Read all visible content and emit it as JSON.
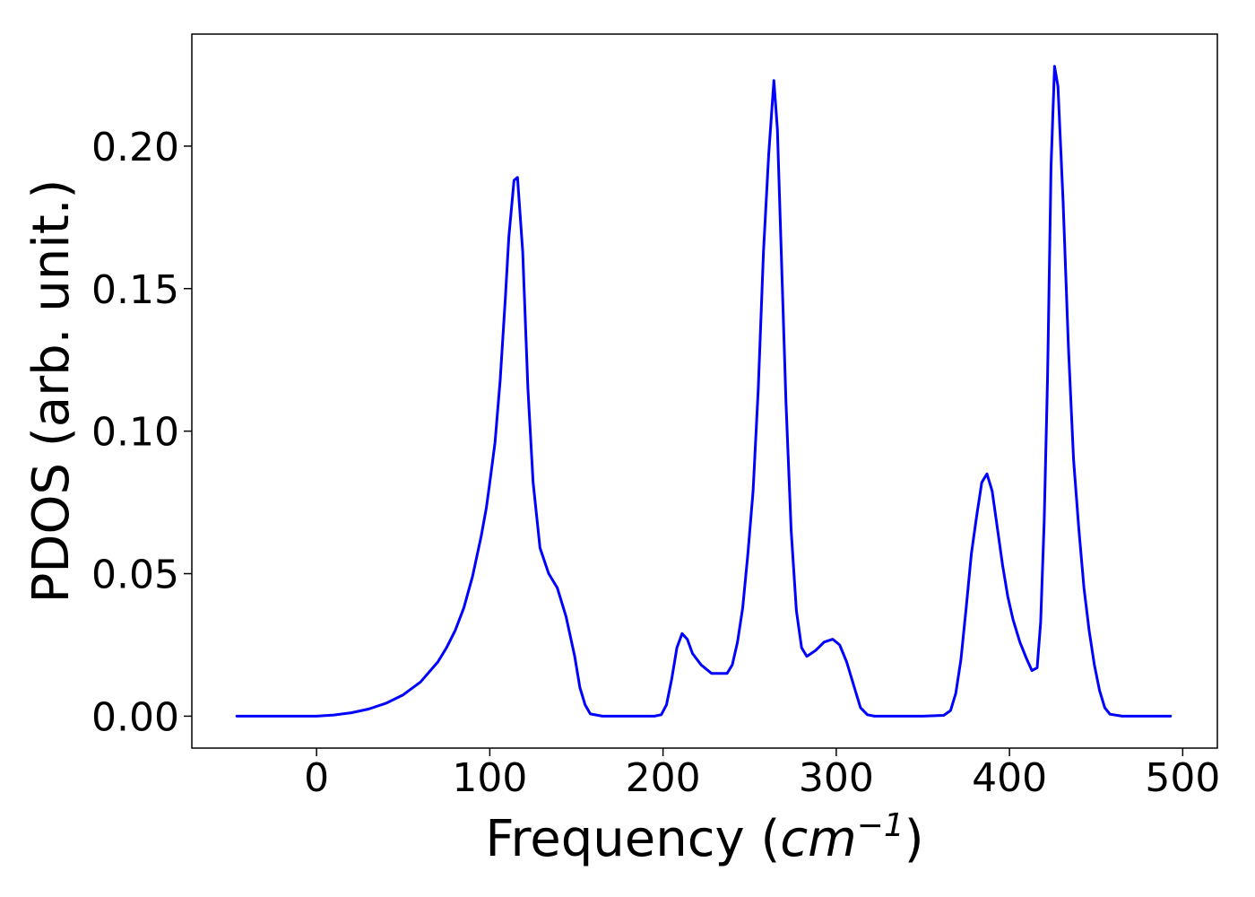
{
  "chart_data": {
    "type": "line",
    "title": "",
    "xlabel": {
      "prefix": "Frequency (",
      "unit_base": "cm",
      "unit_exponent": "−1",
      "suffix": ")"
    },
    "ylabel": "PDOS (arb. unit.)",
    "xlim": [
      -72,
      520
    ],
    "ylim": [
      -0.0112,
      0.2393
    ],
    "x_ticks": [
      0,
      100,
      200,
      300,
      400,
      500
    ],
    "x_tick_labels": [
      "0",
      "100",
      "200",
      "300",
      "400",
      "500"
    ],
    "y_ticks": [
      0.0,
      0.05,
      0.1,
      0.15,
      0.2
    ],
    "y_tick_labels": [
      "0.00",
      "0.05",
      "0.10",
      "0.15",
      "0.20"
    ],
    "grid": false,
    "legend": "none",
    "series": [
      {
        "color": "#0000ff",
        "x": [
          -46,
          -20,
          0,
          10,
          20,
          30,
          40,
          50,
          60,
          70,
          75,
          80,
          85,
          90,
          95,
          98,
          100,
          103,
          106,
          109,
          111,
          114,
          116,
          119,
          122,
          125,
          129,
          134,
          139,
          144,
          149,
          152,
          155,
          158,
          165,
          180,
          195,
          199,
          202,
          205,
          208,
          211,
          214,
          217,
          222,
          228,
          234,
          237,
          240,
          243,
          246,
          249,
          252,
          255,
          258,
          261,
          264,
          266,
          268,
          271,
          274,
          277,
          280,
          283,
          288,
          293,
          298,
          302,
          306,
          310,
          314,
          318,
          322,
          330,
          350,
          362,
          366,
          369,
          372,
          375,
          378,
          381,
          384,
          387,
          390,
          393,
          396,
          399,
          402,
          406,
          410,
          413,
          416,
          418,
          420,
          422,
          424,
          426,
          428,
          431,
          434,
          437,
          440,
          443,
          446,
          449,
          452,
          455,
          458,
          465,
          480,
          493
        ],
        "y": [
          0.0,
          0.0,
          0.0,
          0.0004,
          0.0012,
          0.0025,
          0.0045,
          0.0075,
          0.012,
          0.019,
          0.024,
          0.03,
          0.038,
          0.049,
          0.063,
          0.073,
          0.082,
          0.096,
          0.118,
          0.147,
          0.168,
          0.188,
          0.189,
          0.163,
          0.115,
          0.082,
          0.059,
          0.05,
          0.045,
          0.035,
          0.021,
          0.01,
          0.004,
          0.0008,
          0.0,
          0.0,
          0.0,
          0.0005,
          0.004,
          0.013,
          0.024,
          0.029,
          0.027,
          0.022,
          0.018,
          0.015,
          0.015,
          0.015,
          0.018,
          0.026,
          0.038,
          0.057,
          0.079,
          0.115,
          0.163,
          0.197,
          0.223,
          0.206,
          0.168,
          0.11,
          0.065,
          0.037,
          0.024,
          0.021,
          0.023,
          0.026,
          0.027,
          0.025,
          0.019,
          0.011,
          0.003,
          0.0005,
          0.0,
          0.0,
          0.0,
          0.0003,
          0.002,
          0.008,
          0.02,
          0.038,
          0.057,
          0.07,
          0.082,
          0.085,
          0.079,
          0.066,
          0.053,
          0.042,
          0.034,
          0.026,
          0.02,
          0.016,
          0.017,
          0.033,
          0.068,
          0.119,
          0.193,
          0.228,
          0.221,
          0.18,
          0.13,
          0.09,
          0.066,
          0.045,
          0.03,
          0.018,
          0.009,
          0.003,
          0.0007,
          0.0,
          0.0,
          0.0
        ]
      }
    ]
  }
}
